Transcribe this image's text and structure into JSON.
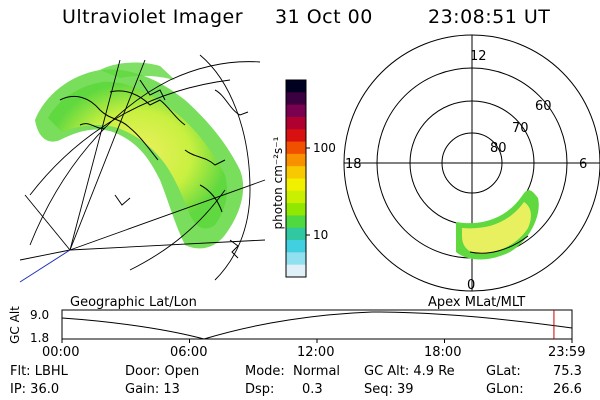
{
  "header": {
    "instrument": "Ultraviolet Imager",
    "date": "31 Oct 00",
    "time": "23:08:51 UT"
  },
  "geo_panel": {
    "caption": "Geographic Lat/Lon"
  },
  "polar_panel": {
    "caption": "Apex MLat/MLT",
    "mlt_labels": [
      "12",
      "18",
      "6",
      "0"
    ],
    "mlat_labels": [
      "60",
      "70",
      "80"
    ]
  },
  "colorbar": {
    "unit_label": "photon cm⁻²s⁻¹",
    "tick_labels": [
      "100",
      "10"
    ],
    "colors": [
      "#000020",
      "#3a0040",
      "#7a0050",
      "#b00030",
      "#d81010",
      "#f05000",
      "#f89000",
      "#f8c800",
      "#f0f000",
      "#c8f000",
      "#90e800",
      "#50d840",
      "#30c8a0",
      "#40d0e0",
      "#90e0f0",
      "#e0f0f8"
    ]
  },
  "timeline": {
    "axis_title": "GC Alt",
    "y_ticks": [
      "9.0",
      "1.8"
    ],
    "x_ticks": [
      "00:00",
      "06:00",
      "12:00",
      "18:00",
      "23:59"
    ],
    "marker_color": "#cc0000",
    "marker_hour": 23.15
  },
  "info": {
    "flt": "Flt: LBHL",
    "ip": "IP: 36.0",
    "door": "Door: Open",
    "gain": "Gain: 13",
    "mode_label": "Mode:",
    "mode_value": "Normal",
    "dsp_label": "Dsp:",
    "dsp_value": "0.3",
    "gcalt": "GC Alt: 4.9 Re",
    "seq": "Seq: 39",
    "glat_label": "GLat:",
    "glat_value": "75.3",
    "glon_label": "GLon:",
    "glon_value": "26.6"
  }
}
